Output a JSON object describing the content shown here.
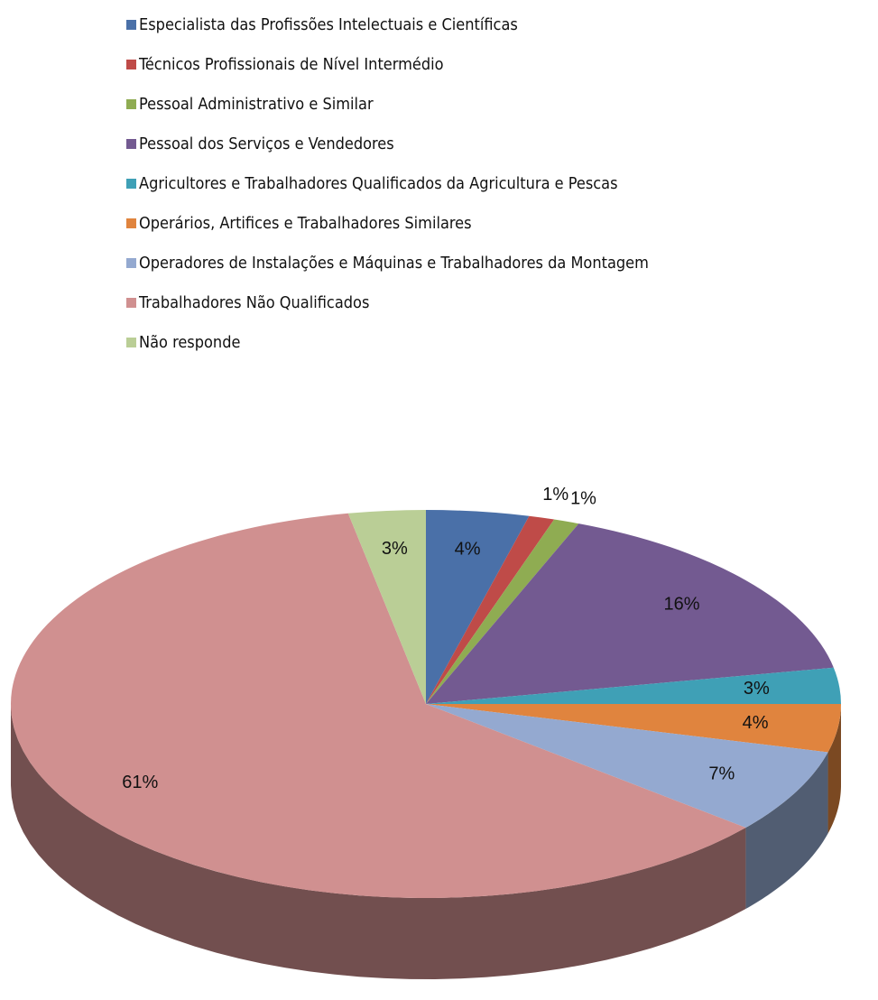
{
  "chart_data": {
    "type": "pie",
    "categories": [
      "Especialista das Profissões Intelectuais e Científicas",
      "Técnicos Profissionais de Nível Intermédio",
      "Pessoal Administrativo e Similar",
      "Pessoal dos Serviços e Vendedores",
      "Agricultores e Trabalhadores Qualificados da Agricultura e Pescas",
      "Operários, Artifices e Trabalhadores Similares",
      "Operadores de Instalações e Máquinas e Trabalhadores da Montagem",
      "Trabalhadores Não Qualificados",
      "Não responde"
    ],
    "values": [
      4,
      1,
      1,
      16,
      3,
      4,
      7,
      61,
      3
    ],
    "value_labels": [
      "4%",
      "1%",
      "1%",
      "16%",
      "3%",
      "4%",
      "7%",
      "61%",
      "3%"
    ],
    "colors": [
      "#4a70a8",
      "#bf4b48",
      "#8fac52",
      "#735a91",
      "#3fa0b6",
      "#e0843e",
      "#94a9d0",
      "#d09090",
      "#bace96"
    ],
    "legend": "top"
  }
}
